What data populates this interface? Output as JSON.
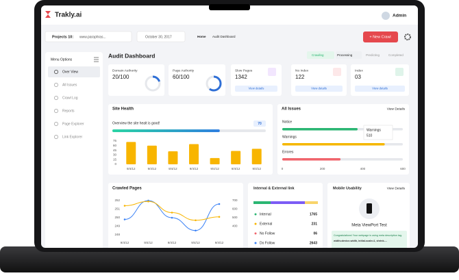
{
  "header": {
    "logo": "Trakly.ai",
    "user": "Admin"
  },
  "toolbar": {
    "project": "Projects 10:",
    "project_url": "www.paraphras...",
    "date": "October 30, 2017",
    "breadcrumb": [
      "Home",
      "Audit Dashboard"
    ],
    "button": "+ New Crawl"
  },
  "sidebar": {
    "title": "Menu Options",
    "items": [
      "Over View",
      "All Issues",
      "Crawl Log",
      "Reports",
      "Page Explorer",
      "Link Explorer"
    ]
  },
  "dashboard": {
    "title": "Audit Dashboard",
    "steps": [
      "Crawling",
      "Processing",
      "Predicting",
      "Completed"
    ],
    "cards": [
      {
        "title": "Domain Authority",
        "value": 20,
        "max": 100,
        "value_label": "20/100"
      },
      {
        "title": "Page Authority",
        "value": 60,
        "max": 100,
        "value_label": "60/100"
      },
      {
        "title": "Slow Pages",
        "value": 1342,
        "action": "View details"
      },
      {
        "title": "No Index",
        "value": 122,
        "action": "View details"
      },
      {
        "title": "Index",
        "value": 3,
        "value_label": "03",
        "action": "View details"
      }
    ]
  },
  "site_health": {
    "title": "Site Health",
    "message": "Overview the site healt is good!",
    "score": 70,
    "chart": {
      "type": "bar",
      "categories": [
        "9/4/12",
        "9/4/12",
        "9/4/12",
        "9/4/12",
        "9/4/12",
        "9/4/12",
        "9/4/12"
      ],
      "values": [
        72,
        60,
        42,
        65,
        20,
        43,
        50
      ],
      "color": "#f8b500",
      "ylim": [
        0,
        75
      ],
      "yticks": [
        0,
        15,
        30,
        45,
        60,
        75
      ]
    }
  },
  "all_issues": {
    "title": "All Issues",
    "action": "View Details",
    "chart": {
      "type": "hbar",
      "categories": [
        "Notice",
        "Warnings",
        "Errores"
      ],
      "values": [
        375,
        510,
        290
      ],
      "colors": [
        "#2bb673",
        "#f5b700",
        "#f0646c"
      ],
      "xlim": [
        0,
        600
      ],
      "xticks": [
        0,
        200,
        400,
        600
      ],
      "tooltip_index": 1
    }
  },
  "crawled_pages": {
    "title": "Crawled Pages",
    "chart": {
      "type": "line",
      "categories": [
        "9/4/12",
        "9/4/12",
        "9/4/12",
        "9/4/12",
        "9/4/12"
      ],
      "series": [
        {
          "color": "#3b82f6",
          "values": [
            249.8,
            252.0,
            250.0,
            248.5,
            251.6
          ]
        },
        {
          "color": "#f8b500",
          "axis": "y2",
          "values": [
            640,
            690,
            560,
            470,
            510
          ]
        }
      ],
      "ylim": [
        248,
        252
      ],
      "yticks": [
        248,
        249,
        250,
        251,
        252
      ],
      "y2lim": [
        300,
        700
      ],
      "y2ticks": [
        400,
        500,
        600,
        700
      ]
    }
  },
  "links": {
    "title": "Internal & External link",
    "rows": [
      {
        "name": "Internal",
        "value": 1765,
        "color": "#2bb673"
      },
      {
        "name": "External",
        "value": 231,
        "color": "#f8b500"
      },
      {
        "name": "No Follow",
        "value": 6,
        "value_label": "06",
        "color": "#f0646c"
      },
      {
        "name": "Do Follow",
        "value": 2643,
        "color": "#3b82f6"
      }
    ]
  },
  "mobile": {
    "title": "Mobile Usability",
    "action": "View Details",
    "test": "Meta ViewPort Test",
    "message": "Congratulations! Your webpage is using meta description tag.",
    "code": "width=device-width, initial-scale=1, shrink-..."
  }
}
